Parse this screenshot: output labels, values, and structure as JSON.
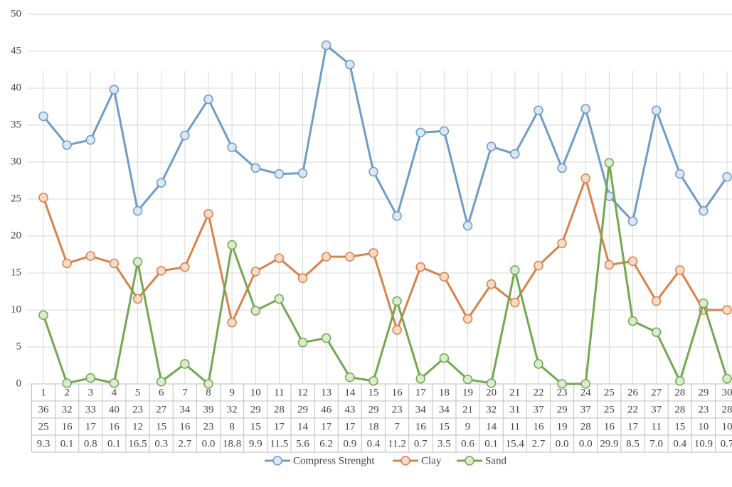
{
  "chart_data": {
    "type": "line",
    "categories": [
      "1",
      "2",
      "3",
      "4",
      "5",
      "6",
      "7",
      "8",
      "9",
      "10",
      "11",
      "12",
      "13",
      "14",
      "15",
      "16",
      "17",
      "18",
      "19",
      "20",
      "21",
      "22",
      "23",
      "24",
      "25",
      "26",
      "27",
      "28",
      "29",
      "30"
    ],
    "series": [
      {
        "name": "Compress Strenght",
        "color": "#6f9cc7",
        "fill": "#dbe7f3",
        "values": [
          36.2,
          32.3,
          33.0,
          39.8,
          23.4,
          27.2,
          33.6,
          38.5,
          32.0,
          29.2,
          28.4,
          28.5,
          45.8,
          43.2,
          28.7,
          22.7,
          34.0,
          34.2,
          21.4,
          32.1,
          31.1,
          37.0,
          29.2,
          37.2,
          25.4,
          22.0,
          37.0,
          28.4,
          23.4,
          28.0
        ],
        "value_labels": [
          "36",
          "32",
          "33",
          "40",
          "23",
          "27",
          "34",
          "39",
          "32",
          "29",
          "28",
          "29",
          "46",
          "43",
          "29",
          "23",
          "34",
          "34",
          "21",
          "32",
          "31",
          "37",
          "29",
          "37",
          "25",
          "22",
          "37",
          "28",
          "23",
          "28"
        ]
      },
      {
        "name": "Clay",
        "color": "#d9824a",
        "fill": "#f6dcc8",
        "values": [
          25.2,
          16.3,
          17.3,
          16.3,
          11.5,
          15.3,
          15.8,
          23.0,
          8.3,
          15.2,
          17.0,
          14.3,
          17.2,
          17.2,
          17.7,
          7.3,
          15.8,
          14.5,
          8.8,
          13.5,
          11.0,
          16.0,
          19.0,
          27.8,
          16.1,
          16.6,
          11.2,
          15.4,
          10.0,
          10.0
        ],
        "value_labels": [
          "25",
          "16",
          "17",
          "16",
          "12",
          "15",
          "16",
          "23",
          "8",
          "15",
          "17",
          "14",
          "17",
          "17",
          "18",
          "7",
          "16",
          "15",
          "9",
          "14",
          "11",
          "16",
          "19",
          "28",
          "16",
          "17",
          "11",
          "15",
          "10",
          "10"
        ]
      },
      {
        "name": "Sand",
        "color": "#72a84f",
        "fill": "#dcebd0",
        "values": [
          9.3,
          0.1,
          0.8,
          0.1,
          16.5,
          0.3,
          2.7,
          0.0,
          18.8,
          9.9,
          11.5,
          5.6,
          6.2,
          0.9,
          0.4,
          11.2,
          0.7,
          3.5,
          0.6,
          0.1,
          15.4,
          2.7,
          0.0,
          0.0,
          29.9,
          8.5,
          7.0,
          0.4,
          10.9,
          0.7
        ],
        "value_labels": [
          "9.3",
          "0.1",
          "0.8",
          "0.1",
          "16.5",
          "0.3",
          "2.7",
          "0.0",
          "18.8",
          "9.9",
          "11.5",
          "5.6",
          "6.2",
          "0.9",
          "0.4",
          "11.2",
          "0.7",
          "3.5",
          "0.6",
          "0.1",
          "15.4",
          "2.7",
          "0.0",
          "0.0",
          "29.9",
          "8.5",
          "7.0",
          "0.4",
          "10.9",
          "0.7"
        ]
      }
    ],
    "ylim": [
      0,
      50
    ],
    "yticks": [
      0,
      5,
      10,
      15,
      20,
      25,
      30,
      35,
      40,
      45,
      50
    ],
    "grid": true,
    "legend": "bottom"
  }
}
